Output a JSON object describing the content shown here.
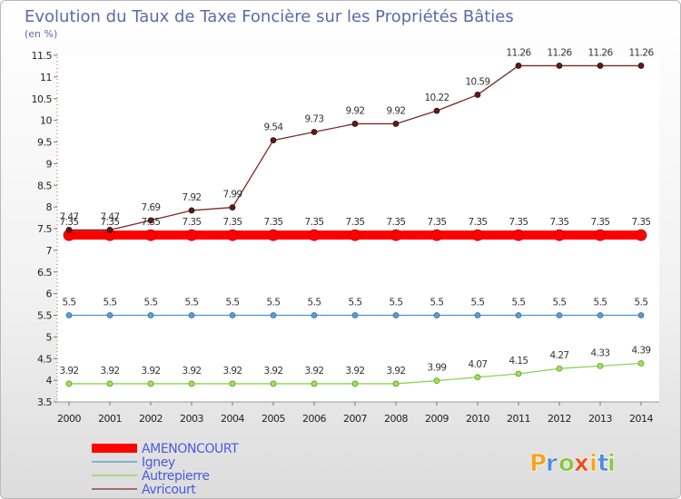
{
  "chart_data": {
    "type": "line",
    "title": "Evolution du Taux de Taxe Foncière sur les Propriétés Bâties",
    "subtitle": "(en %)",
    "x": [
      "2000",
      "2001",
      "2002",
      "2003",
      "2004",
      "2005",
      "2006",
      "2007",
      "2008",
      "2009",
      "2010",
      "2011",
      "2012",
      "2013",
      "2014"
    ],
    "yticks": [
      "3.5",
      "4",
      "4.5",
      "5",
      "5.5",
      "6",
      "6.5",
      "7",
      "7.5",
      "8",
      "8.5",
      "9",
      "9.5",
      "10",
      "10.5",
      "11",
      "11.5"
    ],
    "ylim": [
      3.5,
      11.5
    ],
    "series": [
      {
        "name": "AMENONCOURT",
        "color": "#ff0000",
        "values": [
          7.35,
          7.35,
          7.35,
          7.35,
          7.35,
          7.35,
          7.35,
          7.35,
          7.35,
          7.35,
          7.35,
          7.35,
          7.35,
          7.35,
          7.35
        ],
        "labels": [
          "7.35",
          "7.35",
          "7.35",
          "7.35",
          "7.35",
          "7.35",
          "7.35",
          "7.35",
          "7.35",
          "7.35",
          "7.35",
          "7.35",
          "7.35",
          "7.35",
          "7.35"
        ]
      },
      {
        "name": "Igney",
        "color": "#4f93c8",
        "values": [
          5.5,
          5.5,
          5.5,
          5.5,
          5.5,
          5.5,
          5.5,
          5.5,
          5.5,
          5.5,
          5.5,
          5.5,
          5.5,
          5.5,
          5.5
        ],
        "labels": [
          "5.5",
          "5.5",
          "5.5",
          "5.5",
          "5.5",
          "5.5",
          "5.5",
          "5.5",
          "5.5",
          "5.5",
          "5.5",
          "5.5",
          "5.5",
          "5.5",
          "5.5"
        ]
      },
      {
        "name": "Autrepierre",
        "color": "#8fd14f",
        "values": [
          3.92,
          3.92,
          3.92,
          3.92,
          3.92,
          3.92,
          3.92,
          3.92,
          3.92,
          3.99,
          4.07,
          4.15,
          4.27,
          4.33,
          4.39
        ],
        "labels": [
          "3.92",
          "3.92",
          "3.92",
          "3.92",
          "3.92",
          "3.92",
          "3.92",
          "3.92",
          "3.92",
          "3.99",
          "4.07",
          "4.15",
          "4.27",
          "4.33",
          "4.39"
        ]
      },
      {
        "name": "Avricourt",
        "color": "#7a2a2a",
        "values": [
          7.47,
          7.47,
          7.69,
          7.92,
          7.99,
          9.54,
          9.73,
          9.92,
          9.92,
          10.22,
          10.59,
          11.26,
          11.26,
          11.26,
          11.26
        ],
        "labels": [
          "7.47",
          "7.47",
          "7.69",
          "7.92",
          "7.99",
          "9.54",
          "9.73",
          "9.92",
          "9.92",
          "10.22",
          "10.59",
          "11.26",
          "11.26",
          "11.26",
          "11.26"
        ]
      }
    ]
  },
  "logo": {
    "letters": [
      "P",
      "r",
      "o",
      "x",
      "i",
      "t",
      "i"
    ],
    "colors": [
      "#f7a21b",
      "#4a90d9",
      "#8cc63f",
      "#e94e1b",
      "#f7a21b",
      "#4a90d9",
      "#8cc63f"
    ]
  }
}
